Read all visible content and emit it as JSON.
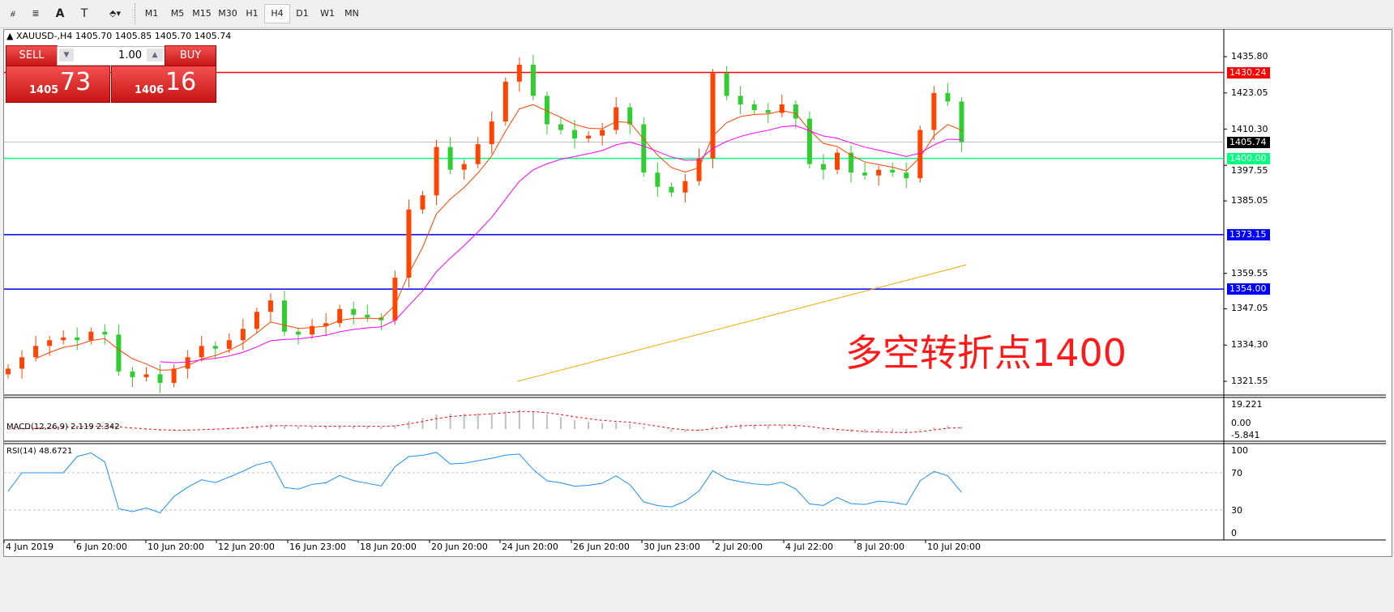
{
  "toolbar": {
    "tools": [
      {
        "name": "expert-lines",
        "glyph": "⧣"
      },
      {
        "name": "fibonacci",
        "glyph": "≣"
      },
      {
        "name": "text",
        "glyph": "A"
      },
      {
        "name": "text-label",
        "glyph": "T"
      },
      {
        "name": "arrows",
        "glyph": "⬘▾"
      }
    ],
    "timeframes": [
      "M1",
      "M5",
      "M15",
      "M30",
      "H1",
      "H4",
      "D1",
      "W1",
      "MN"
    ],
    "active_timeframe": "H4"
  },
  "chart": {
    "header": "XAUUSD-,H4  1405.70 1405.85 1405.70 1405.74",
    "trade_panel": {
      "sell_label": "SELL",
      "buy_label": "BUY",
      "lot": "1.00",
      "sell_big": "73",
      "sell_small": "1405",
      "buy_big": "16",
      "buy_small": "1406"
    },
    "price_axis": [
      "1435.80",
      "1423.05",
      "1410.30",
      "1397.55",
      "1385.05",
      "1359.55",
      "1347.05",
      "1334.30",
      "1321.55"
    ],
    "price_ticks": [
      1435.8,
      1423.05,
      1410.3,
      1397.55,
      1385.05,
      1359.55,
      1347.05,
      1334.3,
      1321.55
    ],
    "levels": [
      {
        "price": 1430.24,
        "label": "1430.24",
        "color": "#ff0000"
      },
      {
        "price": 1400.0,
        "label": "1400.00",
        "color": "#00ff7f"
      },
      {
        "price": 1373.15,
        "label": "1373.15",
        "color": "#0000ff"
      },
      {
        "price": 1354.0,
        "label": "1354.00",
        "color": "#0000ff"
      }
    ],
    "bid": {
      "price": 1405.74,
      "label": "1405.74"
    },
    "annotation": "多空转折点1400",
    "colors": {
      "bull": "#ff4500",
      "bear": "#32cd32",
      "ma_fast": "#ff4500",
      "ma_mid": "#ff00ff",
      "ma_slow": "#ffa500"
    },
    "closes": [
      1326,
      1330,
      1334,
      1336,
      1337,
      1336,
      1339,
      1338,
      1325,
      1323,
      1324,
      1321,
      1326,
      1330,
      1334,
      1333,
      1336,
      1340,
      1346,
      1350,
      1339,
      1338,
      1341,
      1342,
      1347,
      1345,
      1344,
      1343,
      1358,
      1382,
      1387,
      1404,
      1396,
      1398,
      1405,
      1413,
      1427,
      1433,
      1422,
      1412,
      1410,
      1407,
      1408,
      1410,
      1418,
      1412,
      1395,
      1390,
      1388,
      1392,
      1400,
      1430,
      1422,
      1419,
      1417,
      1416,
      1419,
      1414,
      1398,
      1396,
      1402,
      1395,
      1394,
      1396,
      1395,
      1393,
      1410,
      1423,
      1420,
      1405.74
    ],
    "ma_slow_range": [
      1321.5,
      1362.5
    ],
    "time_axis": [
      "4 Jun 2019",
      "6 Jun 20:00",
      "10 Jun 20:00",
      "12 Jun 20:00",
      "16 Jun 23:00",
      "18 Jun 20:00",
      "20 Jun 20:00",
      "24 Jun 20:00",
      "26 Jun 20:00",
      "30 Jun 23:00",
      "2 Jul 20:00",
      "4 Jul 22:00",
      "8 Jul 20:00",
      "10 Jul 20:00"
    ]
  },
  "macd": {
    "label": "MACD(12,26,9) 2.119 2.342",
    "axis": [
      "19.221",
      "0.00",
      "-5.841"
    ]
  },
  "rsi": {
    "label": "RSI(14) 48.6721",
    "axis": [
      "100",
      "70",
      "30",
      "0"
    ]
  }
}
